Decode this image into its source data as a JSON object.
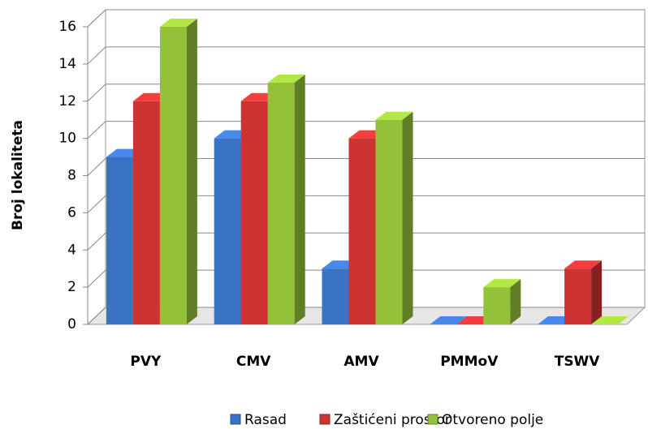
{
  "chart_data": {
    "type": "bar3d",
    "y_label": "Broj lokaliteta",
    "categories": [
      "PVY",
      "CMV",
      "AMV",
      "PMMoV",
      "TSWV"
    ],
    "series": [
      {
        "name": "Rasad",
        "color": "#3b73c4",
        "values": [
          9,
          10,
          3,
          0,
          0
        ]
      },
      {
        "name": "Zaštićeni prostor",
        "color": "#cc3333",
        "values": [
          12,
          12,
          10,
          0,
          3
        ]
      },
      {
        "name": "Otvoreno polje",
        "color": "#93c23a",
        "values": [
          16,
          13,
          11,
          2,
          0
        ]
      }
    ],
    "ylim": [
      0,
      16
    ],
    "yticks": [
      0,
      2,
      4,
      6,
      8,
      10,
      12,
      14,
      16
    ],
    "grid": true,
    "legend": "bottom"
  }
}
